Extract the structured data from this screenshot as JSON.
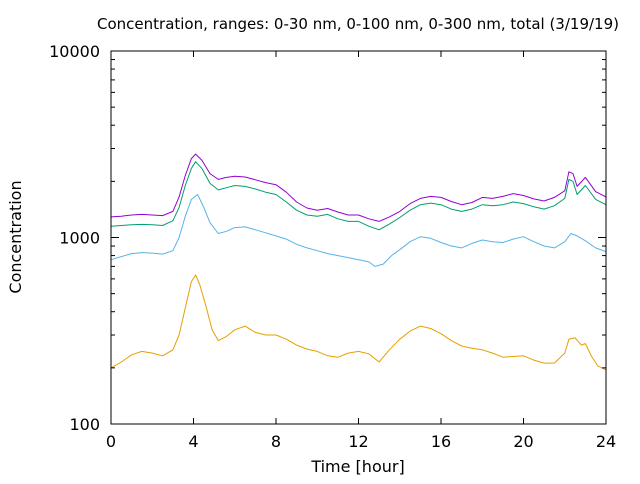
{
  "chart_data": {
    "type": "line",
    "title": "Concentration, ranges: 0-30 nm, 0-100 nm, 0-300 nm, total (3/19/19)",
    "xlabel": "Time [hour]",
    "ylabel": "Concentration",
    "xlim": [
      0,
      24
    ],
    "ylim": [
      100,
      10000
    ],
    "yscale": "log",
    "grid": false,
    "legend": "none",
    "x_ticks": [
      0,
      4,
      8,
      12,
      16,
      20,
      24
    ],
    "x_tick_labels": [
      "0",
      "4",
      "8",
      "12",
      "16",
      "20",
      "24"
    ],
    "y_ticks": [
      100,
      1000,
      10000
    ],
    "y_tick_labels": [
      "100",
      "1000",
      "10000"
    ],
    "series": [
      {
        "color": "#e69f00",
        "x": [
          0,
          0.5,
          1,
          1.5,
          2,
          2.5,
          3,
          3.3,
          3.6,
          3.9,
          4.1,
          4.3,
          4.6,
          4.9,
          5.2,
          5.6,
          6,
          6.5,
          7,
          7.5,
          8,
          8.5,
          9,
          9.5,
          10,
          10.5,
          11,
          11.5,
          12,
          12.5,
          13,
          13.5,
          14,
          14.5,
          15,
          15.5,
          16,
          16.5,
          17,
          17.5,
          18,
          18.5,
          19,
          19.5,
          20,
          20.5,
          21,
          21.5,
          22,
          22.2,
          22.5,
          22.8,
          23,
          23.3,
          23.6,
          24
        ],
        "y": [
          200,
          215,
          235,
          245,
          240,
          232,
          250,
          300,
          420,
          580,
          630,
          560,
          430,
          320,
          280,
          295,
          320,
          335,
          310,
          300,
          300,
          285,
          265,
          252,
          245,
          232,
          228,
          240,
          245,
          238,
          215,
          250,
          285,
          315,
          335,
          325,
          305,
          280,
          262,
          255,
          250,
          240,
          228,
          230,
          232,
          220,
          212,
          212,
          240,
          285,
          290,
          265,
          270,
          230,
          205,
          195
        ]
      },
      {
        "color": "#56b4e9",
        "x": [
          0,
          0.5,
          1,
          1.5,
          2,
          2.5,
          3,
          3.3,
          3.6,
          3.9,
          4.2,
          4.5,
          4.8,
          5.2,
          5.6,
          6,
          6.5,
          7,
          7.5,
          8,
          8.5,
          9,
          9.5,
          10,
          10.5,
          11,
          11.5,
          12,
          12.5,
          12.8,
          13.2,
          13.6,
          14,
          14.5,
          15,
          15.5,
          16,
          16.5,
          17,
          17.5,
          18,
          18.5,
          19,
          19.5,
          20,
          20.5,
          21,
          21.5,
          22,
          22.3,
          22.6,
          23,
          23.5,
          24
        ],
        "y": [
          760,
          790,
          820,
          830,
          825,
          815,
          850,
          1000,
          1300,
          1600,
          1700,
          1450,
          1200,
          1050,
          1080,
          1130,
          1140,
          1100,
          1060,
          1020,
          980,
          920,
          880,
          850,
          820,
          800,
          780,
          760,
          740,
          700,
          720,
          800,
          860,
          950,
          1010,
          990,
          940,
          900,
          880,
          930,
          970,
          950,
          940,
          980,
          1010,
          950,
          900,
          880,
          950,
          1050,
          1020,
          960,
          880,
          840
        ]
      },
      {
        "color": "#009e73",
        "x": [
          0,
          0.5,
          1,
          1.5,
          2,
          2.5,
          3,
          3.3,
          3.6,
          3.9,
          4.1,
          4.4,
          4.8,
          5.2,
          5.6,
          6,
          6.5,
          7,
          7.5,
          8,
          8.5,
          9,
          9.5,
          10,
          10.5,
          11,
          11.5,
          12,
          12.5,
          13,
          13.5,
          14,
          14.5,
          15,
          15.5,
          16,
          16.5,
          17,
          17.5,
          18,
          18.5,
          19,
          19.5,
          20,
          20.5,
          21,
          21.5,
          22,
          22.2,
          22.4,
          22.6,
          23,
          23.5,
          24
        ],
        "y": [
          1150,
          1160,
          1170,
          1175,
          1170,
          1160,
          1230,
          1450,
          1900,
          2350,
          2550,
          2350,
          1950,
          1800,
          1850,
          1900,
          1880,
          1820,
          1750,
          1700,
          1550,
          1400,
          1320,
          1300,
          1330,
          1260,
          1220,
          1220,
          1150,
          1100,
          1180,
          1280,
          1400,
          1500,
          1530,
          1500,
          1420,
          1380,
          1420,
          1500,
          1480,
          1500,
          1550,
          1520,
          1460,
          1420,
          1480,
          1620,
          2050,
          2000,
          1700,
          1900,
          1600,
          1500
        ]
      },
      {
        "color": "#9400d3",
        "x": [
          0,
          0.5,
          1,
          1.5,
          2,
          2.5,
          3,
          3.3,
          3.6,
          3.9,
          4.1,
          4.4,
          4.8,
          5.2,
          5.6,
          6,
          6.5,
          7,
          7.5,
          8,
          8.5,
          9,
          9.5,
          10,
          10.5,
          11,
          11.5,
          12,
          12.5,
          13,
          13.5,
          14,
          14.5,
          15,
          15.5,
          16,
          16.5,
          17,
          17.5,
          18,
          18.5,
          19,
          19.5,
          20,
          20.5,
          21,
          21.5,
          22,
          22.2,
          22.4,
          22.6,
          23,
          23.5,
          24
        ],
        "y": [
          1290,
          1300,
          1320,
          1330,
          1320,
          1310,
          1380,
          1650,
          2150,
          2650,
          2800,
          2600,
          2200,
          2050,
          2100,
          2130,
          2110,
          2040,
          1970,
          1920,
          1750,
          1550,
          1440,
          1400,
          1430,
          1370,
          1320,
          1320,
          1260,
          1220,
          1290,
          1380,
          1520,
          1620,
          1660,
          1640,
          1560,
          1500,
          1540,
          1640,
          1620,
          1660,
          1720,
          1680,
          1610,
          1570,
          1640,
          1780,
          2250,
          2200,
          1880,
          2100,
          1760,
          1650
        ]
      }
    ]
  }
}
